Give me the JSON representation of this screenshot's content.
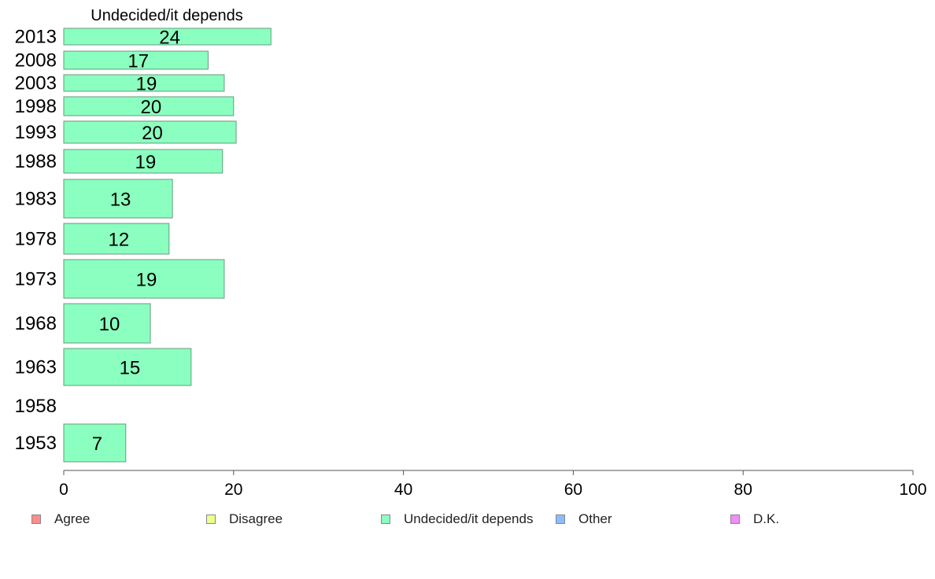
{
  "chart_data": {
    "type": "bar",
    "orientation": "horizontal",
    "title": "Undecided/it depends",
    "xlabel": "",
    "ylabel": "",
    "xlim": [
      0,
      100
    ],
    "x_ticks": [
      "0",
      "20",
      "40",
      "60",
      "80",
      "100"
    ],
    "categories": [
      "2013",
      "2008",
      "2003",
      "1998",
      "1993",
      "1988",
      "1983",
      "1978",
      "1973",
      "1968",
      "1963",
      "1958",
      "1953"
    ],
    "series": [
      {
        "name": "Undecided/it depends",
        "color": "#8bffbf",
        "values": [
          24,
          17,
          19,
          20,
          20,
          19,
          13,
          12,
          19,
          10,
          15,
          null,
          7
        ],
        "labels": [
          "24",
          "17",
          "19",
          "20",
          "20",
          "19",
          "13",
          "12",
          "19",
          "10",
          "15",
          "",
          "7"
        ],
        "bar_lengths": [
          24.4,
          17.0,
          18.9,
          20.0,
          20.3,
          18.7,
          12.8,
          12.4,
          18.9,
          10.2,
          15.0,
          null,
          7.3
        ]
      }
    ],
    "legend": {
      "placement": "bottom",
      "items": [
        {
          "label": "Agree",
          "color": "#ff8c8c"
        },
        {
          "label": "Disagree",
          "color": "#eeff8c"
        },
        {
          "label": "Undecided/it depends",
          "color": "#8bffbf"
        },
        {
          "label": "Other",
          "color": "#8cbcff"
        },
        {
          "label": "D.K.",
          "color": "#f08cff"
        }
      ]
    },
    "grid": false
  }
}
